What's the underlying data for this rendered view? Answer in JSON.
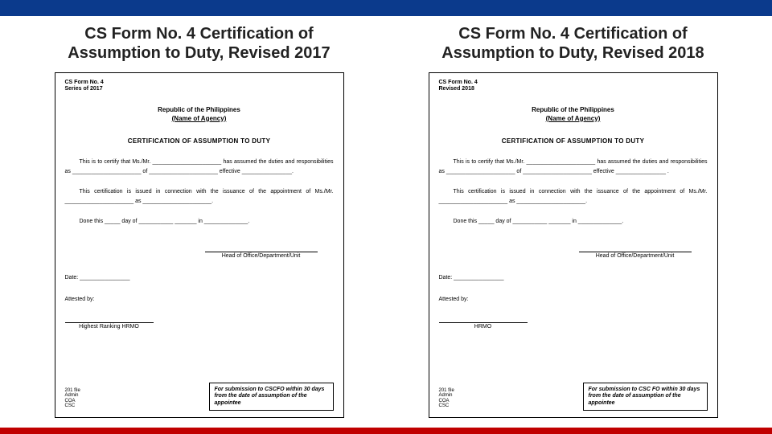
{
  "colors": {
    "top_bar": "#0b3a8c",
    "bottom_bar": "#c00000",
    "background": "#ffffff",
    "text": "#222222",
    "doc_border": "#000000"
  },
  "left": {
    "heading_l1": "CS Form No. 4 Certification of",
    "heading_l2": "Assumption to Duty, Revised 2017",
    "form_no": "CS Form No. 4",
    "series": "Series of 2017",
    "republic": "Republic of the Philippines",
    "agency": "(Name of Agency)",
    "cert_title": "CERTIFICATION OF ASSUMPTION TO DUTY",
    "para1": "This is to certify that Ms./Mr. ______________________ has assumed the duties and responsibilities as ______________________ of ______________________ effective ________________.",
    "para2": "This certification is issued in connection with the issuance of the appointment of Ms./Mr. ______________________ as ______________________.",
    "done": "Done this _____ day of ___________ _______ in ______________.",
    "sig_label": "Head of Office/Department/Unit",
    "date": "Date: ________________",
    "attested": "Attested by:",
    "hrmo": "Highest Ranking HRMO",
    "dist_h": "201 file",
    "dist_1": "Admin",
    "dist_2": "COA",
    "dist_3": "CSC",
    "subbox": "For submission to CSCFO within 30 days from the date of assumption of the appointee"
  },
  "right": {
    "heading_l1": "CS Form No. 4 Certification of",
    "heading_l2": "Assumption to Duty, Revised 2018",
    "form_no": "CS Form No. 4",
    "series": "Revised 2018",
    "republic": "Republic of the Philippines",
    "agency": "(Name of Agency)",
    "cert_title": "CERTIFICATION OF ASSUMPTION TO DUTY",
    "para1": "This is to certify that Ms./Mr. ______________________ has assumed the duties and responsibilities as ______________________ of ______________________ effective ________________ .",
    "para2": "This certification is issued in connection with the issuance of the appointment of Ms./Mr. ______________________ as ______________________.",
    "done": "Done this _____ day of ___________ _______ in ______________.",
    "sig_label": "Head of Office/Department/Unit",
    "date": "Date: ________________",
    "attested": "Attested by:",
    "hrmo": "HRMO",
    "dist_h": "201 file",
    "dist_1": "Admin",
    "dist_2": "COA",
    "dist_3": "CSC",
    "subbox": "For submission to CSC FO within 30 days from the date of assumption of the appointee"
  }
}
